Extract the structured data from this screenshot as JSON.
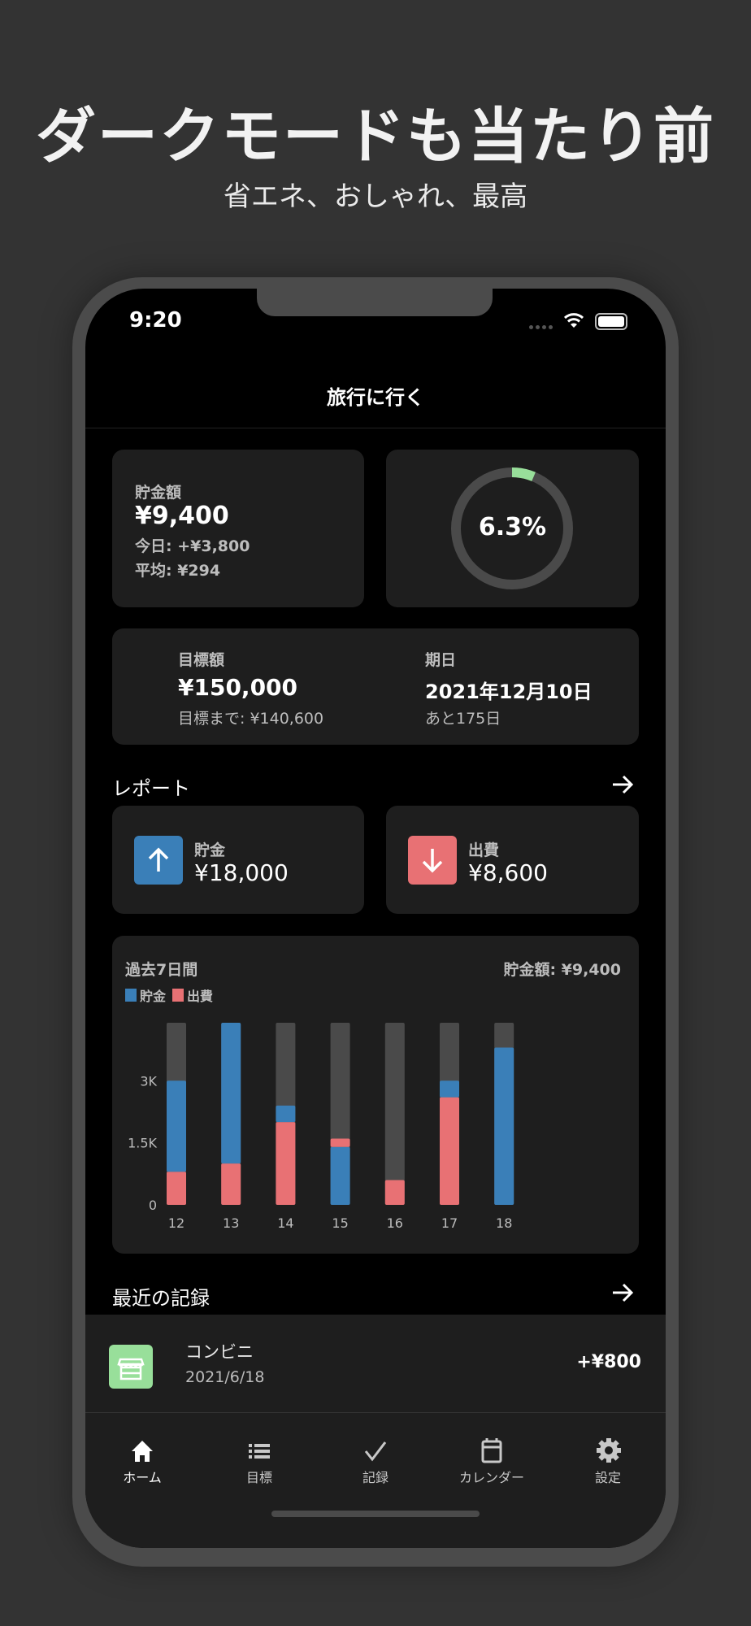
{
  "promo": {
    "headline": "ダークモードも当たり前",
    "subheadline": "省エネ、おしゃれ、最高"
  },
  "status_bar": {
    "time": "9:20"
  },
  "nav": {
    "title": "旅行に行く"
  },
  "savings_card": {
    "label": "貯金額",
    "amount": "¥9,400",
    "today": "今日: +¥3,800",
    "average": "平均: ¥294"
  },
  "progress": {
    "label": "6.3%",
    "value": 0.063,
    "color": "#98df9a"
  },
  "goal_card": {
    "goal_label": "目標額",
    "goal_amount": "¥150,000",
    "remaining": "目標まで: ¥140,600",
    "due_label": "期日",
    "due_date": "2021年12月10日",
    "days_left": "あと175日"
  },
  "report": {
    "heading": "レポート",
    "savings": {
      "label": "貯金",
      "amount": "¥18,000",
      "color": "#3a7fb8"
    },
    "expense": {
      "label": "出費",
      "amount": "¥8,600",
      "color": "#e87174"
    }
  },
  "chart_data": {
    "type": "bar",
    "stacked": true,
    "title": "過去7日間",
    "summary": "貯金額: ¥9,400",
    "legend": [
      {
        "name": "貯金",
        "color": "#3a7fb8"
      },
      {
        "name": "出費",
        "color": "#e87174"
      }
    ],
    "legend_position": "top-left",
    "categories": [
      "12",
      "13",
      "14",
      "15",
      "16",
      "17",
      "18"
    ],
    "series": [
      {
        "name": "貯金",
        "values": [
          2200,
          3400,
          400,
          1400,
          0,
          400,
          3800
        ]
      },
      {
        "name": "出費",
        "values": [
          800,
          1000,
          2000,
          200,
          600,
          2600,
          0
        ]
      }
    ],
    "stacks_bottom_to_top": [
      [
        "出費",
        "貯金"
      ],
      [
        "出費",
        "貯金"
      ],
      [
        "出費",
        "貯金"
      ],
      [
        "貯金",
        "出費"
      ],
      [
        "出費",
        "貯金"
      ],
      [
        "出費",
        "貯金"
      ],
      [
        "出費",
        "貯金"
      ]
    ],
    "yticks": [
      "0",
      "1.5K",
      "3K"
    ],
    "ytick_values": [
      0,
      1500,
      3000
    ],
    "ylim": [
      0,
      4400
    ],
    "background_bar_color": "#4a4a4a",
    "grid": false
  },
  "recent": {
    "heading": "最近の記録",
    "items": [
      {
        "title": "コンビニ",
        "date": "2021/6/18",
        "amount": "+¥800",
        "icon": "store-icon",
        "icon_color": "#98df9a"
      }
    ]
  },
  "tabs": [
    {
      "label": "ホーム",
      "icon": "home-icon",
      "active": true
    },
    {
      "label": "目標",
      "icon": "list-icon",
      "active": false
    },
    {
      "label": "記録",
      "icon": "check-icon",
      "active": false
    },
    {
      "label": "カレンダー",
      "icon": "calendar-icon",
      "active": false
    },
    {
      "label": "設定",
      "icon": "gear-icon",
      "active": false
    }
  ]
}
